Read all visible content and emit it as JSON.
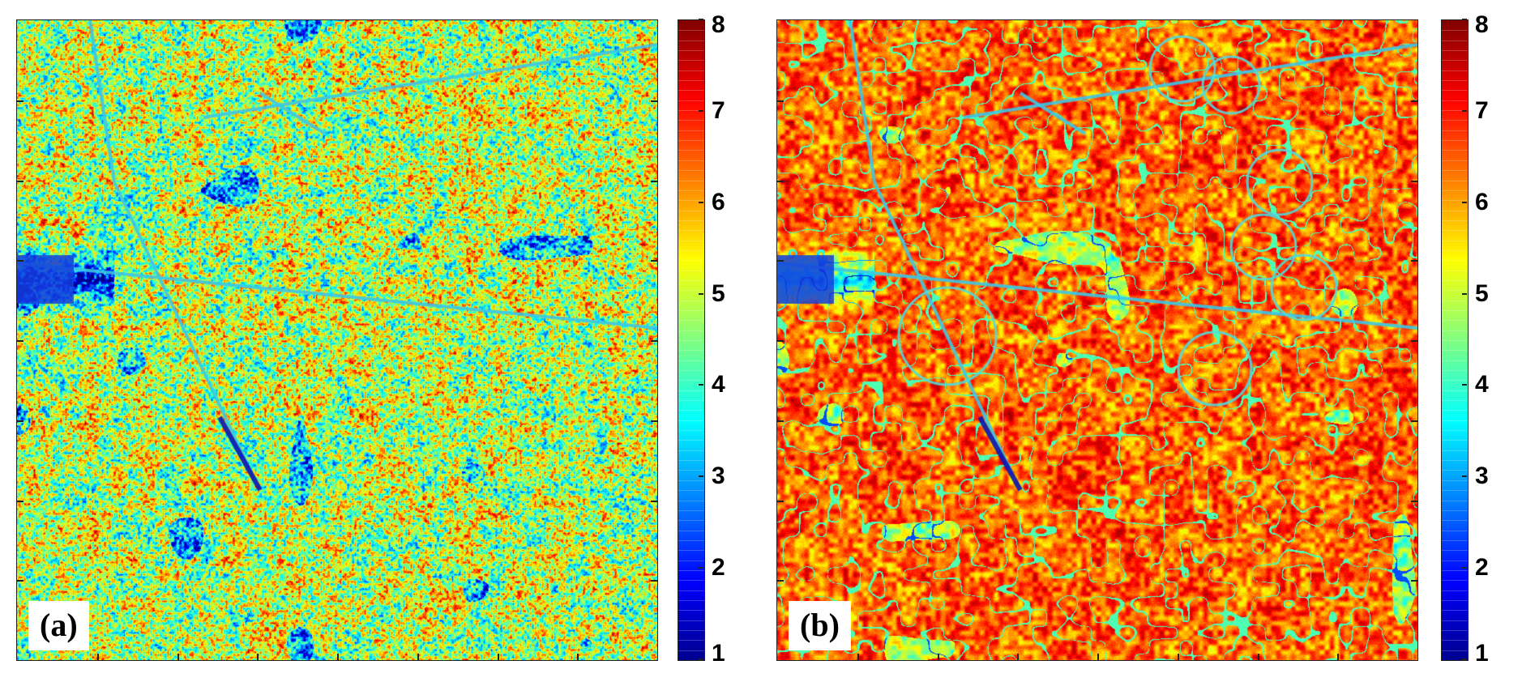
{
  "panels": [
    {
      "id": "a",
      "label": "(a)",
      "style": "noisy"
    },
    {
      "id": "b",
      "label": "(b)",
      "style": "smooth"
    }
  ],
  "colorbar": {
    "min": 1,
    "max": 8,
    "ticks": [
      "1",
      "2",
      "3",
      "4",
      "5",
      "6",
      "7",
      "8"
    ],
    "colormap": "jet"
  }
}
